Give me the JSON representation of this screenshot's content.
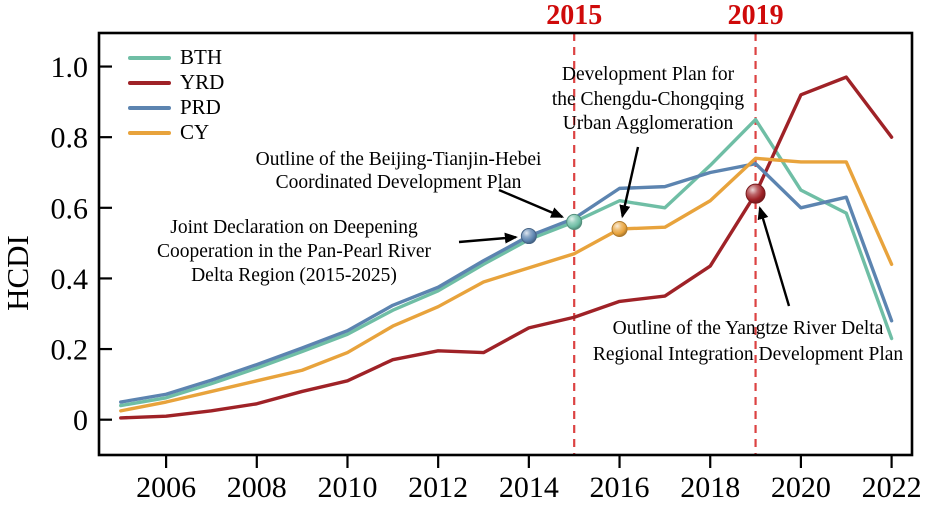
{
  "chart_data": {
    "type": "line",
    "title": "",
    "xlabel": "",
    "ylabel": "HCDI",
    "grid": false,
    "x": [
      2005,
      2006,
      2007,
      2008,
      2009,
      2010,
      2011,
      2012,
      2013,
      2014,
      2015,
      2016,
      2017,
      2018,
      2019,
      2020,
      2021,
      2022
    ],
    "series": [
      {
        "name": "BTH",
        "color": "#6FBEA5",
        "values": [
          0.04,
          0.062,
          0.102,
          0.146,
          0.193,
          0.242,
          0.31,
          0.365,
          0.44,
          0.51,
          0.56,
          0.62,
          0.6,
          0.72,
          0.85,
          0.65,
          0.585,
          0.23
        ]
      },
      {
        "name": "YRD",
        "color": "#9F2227",
        "values": [
          0.005,
          0.01,
          0.025,
          0.045,
          0.08,
          0.11,
          0.17,
          0.195,
          0.19,
          0.26,
          0.29,
          0.335,
          0.35,
          0.435,
          0.64,
          0.92,
          0.97,
          0.8
        ]
      },
      {
        "name": "PRD",
        "color": "#5C84B0",
        "values": [
          0.05,
          0.072,
          0.112,
          0.156,
          0.203,
          0.252,
          0.324,
          0.375,
          0.45,
          0.52,
          0.57,
          0.655,
          0.66,
          0.7,
          0.725,
          0.6,
          0.63,
          0.28
        ]
      },
      {
        "name": "CY",
        "color": "#E8A33C",
        "values": [
          0.025,
          0.05,
          0.08,
          0.11,
          0.14,
          0.19,
          0.265,
          0.32,
          0.39,
          0.43,
          0.47,
          0.54,
          0.545,
          0.62,
          0.74,
          0.73,
          0.73,
          0.44
        ]
      }
    ],
    "xtick_labels": [
      "2006",
      "2008",
      "2010",
      "2012",
      "2014",
      "2016",
      "2018",
      "2020",
      "2022"
    ],
    "xtick_values": [
      2006,
      2008,
      2010,
      2012,
      2014,
      2016,
      2018,
      2020,
      2022
    ],
    "ytick_labels": [
      "0",
      "0.2",
      "0.4",
      "0.6",
      "0.8",
      "1.0"
    ],
    "ytick_values": [
      0,
      0.2,
      0.4,
      0.6,
      0.8,
      1.0
    ],
    "xlim": [
      2004.52,
      2022.45
    ],
    "ylim": [
      -0.1,
      1.095
    ],
    "legend_position": "top-left",
    "event_lines": [
      {
        "year": 2015,
        "label": "2015",
        "line_color": "#DC4242",
        "label_color": "#CF0A0A"
      },
      {
        "year": 2019,
        "label": "2019",
        "line_color": "#DC4242",
        "label_color": "#CF0A0A"
      }
    ],
    "event_markers": [
      {
        "series": "PRD",
        "year": 2014,
        "value": 0.52,
        "size": "normal"
      },
      {
        "series": "BTH",
        "year": 2015,
        "value": 0.56,
        "size": "normal"
      },
      {
        "series": "CY",
        "year": 2016,
        "value": 0.54,
        "size": "normal"
      },
      {
        "series": "YRD",
        "year": 2019,
        "value": 0.64,
        "size": "large"
      }
    ],
    "annotations": [
      {
        "id": "bth",
        "text_lines": [
          "Outline of the Beijing-Tianjin-Hebei",
          "Coordinated Development Plan"
        ],
        "target_series": "BTH",
        "target_year": 2015
      },
      {
        "id": "prd",
        "text_lines": [
          "Joint Declaration on Deepening",
          "Cooperation in the Pan-Pearl River",
          "Delta Region (2015-2025)"
        ],
        "target_series": "PRD",
        "target_year": 2014
      },
      {
        "id": "cy",
        "text_lines": [
          "Development Plan for",
          "the Chengdu-Chongqing",
          "Urban Agglomeration"
        ],
        "target_series": "CY",
        "target_year": 2016
      },
      {
        "id": "yrd",
        "text_lines": [
          "Outline of the Yangtze River Delta",
          "Regional Integration Development Plan"
        ],
        "target_series": "YRD",
        "target_year": 2019
      }
    ]
  }
}
